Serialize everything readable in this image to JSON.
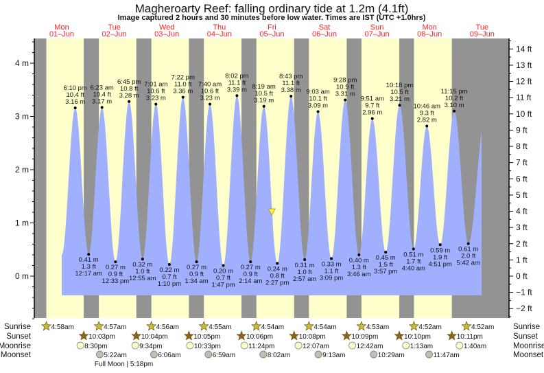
{
  "chart_data": {
    "type": "area",
    "title": "Magheroarty Reef: falling  ordinary tide at 1.2m (4.1ft)",
    "subtitle": "Image captured 2 hours and 30 minutes before low water. Times are IST (UTC +1.0hrs)",
    "days": [
      {
        "dow": "Mon",
        "date": "01–Jun"
      },
      {
        "dow": "Tue",
        "date": "02–Jun"
      },
      {
        "dow": "Wed",
        "date": "03–Jun"
      },
      {
        "dow": "Thu",
        "date": "04–Jun"
      },
      {
        "dow": "Fri",
        "date": "05–Jun"
      },
      {
        "dow": "Sat",
        "date": "06–Jun"
      },
      {
        "dow": "Sun",
        "date": "07–Jun"
      },
      {
        "dow": "Mon",
        "date": "08–Jun"
      },
      {
        "dow": "Tue",
        "date": "09–Jun"
      }
    ],
    "y_left_unit": "m",
    "y_left_ticks": [
      0,
      1,
      2,
      3,
      4
    ],
    "y_right_unit": "ft",
    "y_right_ticks": [
      -2,
      -1,
      0,
      1,
      2,
      3,
      4,
      5,
      6,
      7,
      8,
      9,
      10,
      11,
      12,
      13,
      14
    ],
    "ylim_m": [
      -0.79,
      4.47
    ],
    "curve_start": {
      "day": 1,
      "time": "12:00 pm",
      "m": 0.4
    },
    "curve_end": {
      "day": 9,
      "time": "11:45 am",
      "m": 2.72
    },
    "extremes": [
      {
        "type": "high",
        "day": 1,
        "time": "6:10 pm",
        "ft": "10.4 ft",
        "m": 3.16
      },
      {
        "type": "low",
        "day": 2,
        "time": "12:17 am",
        "ft": "1.3 ft",
        "m": 0.41
      },
      {
        "type": "high",
        "day": 2,
        "time": "6:23 am",
        "ft": "10.4 ft",
        "m": 3.17
      },
      {
        "type": "low",
        "day": 2,
        "time": "12:33 pm",
        "ft": "0.9 ft",
        "m": 0.27
      },
      {
        "type": "high",
        "day": 2,
        "time": "6:45 pm",
        "ft": "10.8 ft",
        "m": 3.28
      },
      {
        "type": "low",
        "day": 3,
        "time": "12:55 am",
        "ft": "1.0 ft",
        "m": 0.32
      },
      {
        "type": "high",
        "day": 3,
        "time": "7:01 am",
        "ft": "10.6 ft",
        "m": 3.23
      },
      {
        "type": "low",
        "day": 3,
        "time": "1:10 pm",
        "ft": "0.7 ft",
        "m": 0.22
      },
      {
        "type": "high",
        "day": 3,
        "time": "7:22 pm",
        "ft": "11.0 ft",
        "m": 3.36
      },
      {
        "type": "low",
        "day": 4,
        "time": "1:34 am",
        "ft": "0.9 ft",
        "m": 0.27
      },
      {
        "type": "high",
        "day": 4,
        "time": "7:40 am",
        "ft": "10.6 ft",
        "m": 3.23
      },
      {
        "type": "low",
        "day": 4,
        "time": "1:47 pm",
        "ft": "0.7 ft",
        "m": 0.2
      },
      {
        "type": "high",
        "day": 4,
        "time": "8:02 pm",
        "ft": "11.1 ft",
        "m": 3.39
      },
      {
        "type": "low",
        "day": 5,
        "time": "2:14 am",
        "ft": "0.9 ft",
        "m": 0.27
      },
      {
        "type": "high",
        "day": 5,
        "time": "8:19 am",
        "ft": "10.5 ft",
        "m": 3.19
      },
      {
        "type": "low",
        "day": 5,
        "time": "2:27 pm",
        "ft": "0.8 ft",
        "m": 0.24
      },
      {
        "type": "high",
        "day": 5,
        "time": "8:43 pm",
        "ft": "11.1 ft",
        "m": 3.38
      },
      {
        "type": "low",
        "day": 6,
        "time": "2:57 am",
        "ft": "1.0 ft",
        "m": 0.31
      },
      {
        "type": "high",
        "day": 6,
        "time": "9:03 am",
        "ft": "10.1 ft",
        "m": 3.09
      },
      {
        "type": "low",
        "day": 6,
        "time": "3:09 pm",
        "ft": "1.1 ft",
        "m": 0.33
      },
      {
        "type": "high",
        "day": 6,
        "time": "9:28 pm",
        "ft": "10.9 ft",
        "m": 3.31
      },
      {
        "type": "low",
        "day": 7,
        "time": "3:46 am",
        "ft": "1.3 ft",
        "m": 0.4
      },
      {
        "type": "high",
        "day": 7,
        "time": "9:51 am",
        "ft": "9.7 ft",
        "m": 2.96
      },
      {
        "type": "low",
        "day": 7,
        "time": "3:57 pm",
        "ft": "1.5 ft",
        "m": 0.45
      },
      {
        "type": "high",
        "day": 7,
        "time": "10:18 pm",
        "ft": "10.5 ft",
        "m": 3.21
      },
      {
        "type": "low",
        "day": 8,
        "time": "4:40 am",
        "ft": "1.7 ft",
        "m": 0.51
      },
      {
        "type": "high",
        "day": 8,
        "time": "10:46 am",
        "ft": "9.3 ft",
        "m": 2.82
      },
      {
        "type": "low",
        "day": 8,
        "time": "4:51 pm",
        "ft": "1.9 ft",
        "m": 0.59
      },
      {
        "type": "high",
        "day": 8,
        "time": "11:15 pm",
        "ft": "10.2 ft",
        "m": 3.1
      },
      {
        "type": "low",
        "day": 9,
        "time": "5:42 am",
        "ft": "2.0 ft",
        "m": 0.61
      }
    ],
    "current": {
      "day": 5,
      "time": "11:57 am",
      "m": 1.2
    },
    "rows": {
      "sunrise": "Sunrise",
      "sunset": "Sunset",
      "moonrise": "Moonrise",
      "moonset": "Moonset"
    },
    "sunrise": [
      {
        "day": 1,
        "t": "4:58am"
      },
      {
        "day": 2,
        "t": "4:57am"
      },
      {
        "day": 3,
        "t": "4:56am"
      },
      {
        "day": 4,
        "t": "4:55am"
      },
      {
        "day": 5,
        "t": "4:54am"
      },
      {
        "day": 6,
        "t": "4:54am"
      },
      {
        "day": 7,
        "t": "4:53am"
      },
      {
        "day": 8,
        "t": "4:52am"
      },
      {
        "day": 9,
        "t": "4:52am"
      }
    ],
    "sunset": [
      {
        "day": 1,
        "t": "10:03pm"
      },
      {
        "day": 2,
        "t": "10:04pm"
      },
      {
        "day": 3,
        "t": "10:05pm"
      },
      {
        "day": 4,
        "t": "10:06pm"
      },
      {
        "day": 5,
        "t": "10:08pm"
      },
      {
        "day": 6,
        "t": "10:09pm"
      },
      {
        "day": 7,
        "t": "10:10pm"
      },
      {
        "day": 8,
        "t": "10:11pm"
      }
    ],
    "moonrise": [
      {
        "day": 1,
        "t": "8:30pm"
      },
      {
        "day": 2,
        "t": "9:34pm"
      },
      {
        "day": 3,
        "t": "10:33pm"
      },
      {
        "day": 4,
        "t": "11:24pm"
      },
      {
        "day": 6,
        "t": "12:07am"
      },
      {
        "day": 7,
        "t": "12:42am"
      },
      {
        "day": 8,
        "t": "1:13am"
      },
      {
        "day": 9,
        "t": "1:40am"
      }
    ],
    "moonset": [
      {
        "day": 2,
        "t": "5:22am"
      },
      {
        "day": 3,
        "t": "6:06am"
      },
      {
        "day": 4,
        "t": "6:59am"
      },
      {
        "day": 5,
        "t": "8:02am"
      },
      {
        "day": 6,
        "t": "9:13am"
      },
      {
        "day": 7,
        "t": "10:29am"
      },
      {
        "day": 8,
        "t": "11:47am"
      }
    ],
    "moon_phase": {
      "label": "Full Moon",
      "day": 2,
      "t": "5:18pm",
      "text": "Full Moon | 5:18pm"
    },
    "colors": {
      "day": "#ffffcc",
      "night": "#939393",
      "water": "#a0b0ff",
      "daylabel": "#ff2020",
      "sunrise": "#c8bc3a",
      "sunset": "#8a6420",
      "moonrise": "#ffffcc",
      "moonset": "#c0c0b0"
    }
  }
}
